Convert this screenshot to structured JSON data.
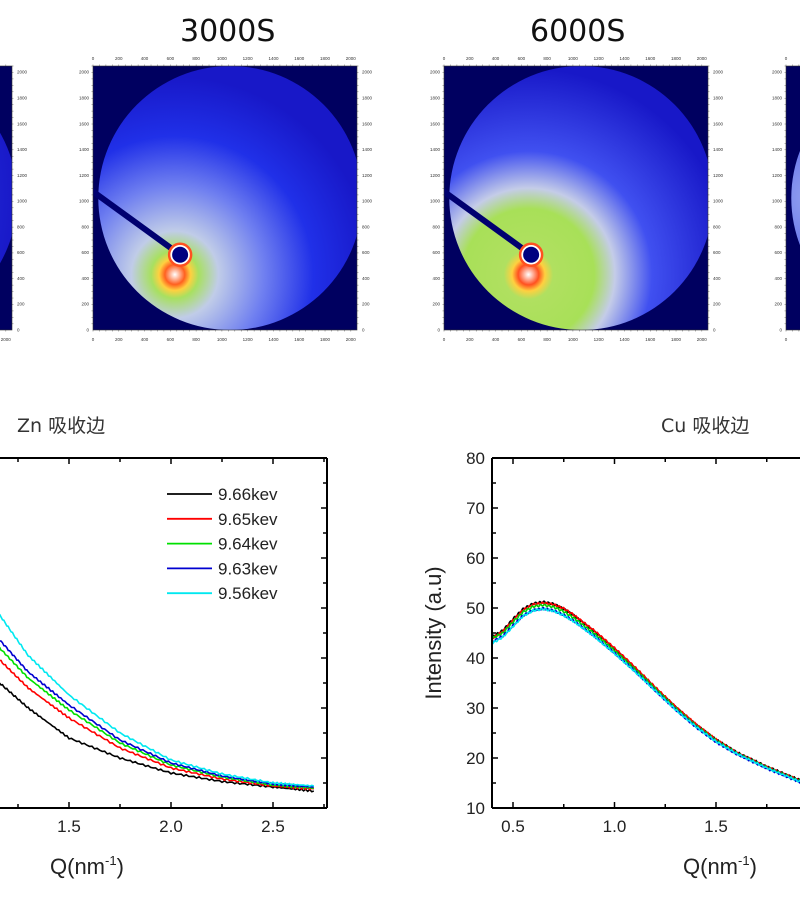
{
  "detector_images": {
    "panels": [
      {
        "title": "",
        "partial": "left-edge"
      },
      {
        "title": "3000S"
      },
      {
        "title": "6000S"
      },
      {
        "title": "",
        "partial": "right-edge"
      }
    ],
    "axis_ticks": [
      "0",
      "200",
      "400",
      "600",
      "800",
      "1000",
      "1200",
      "1400",
      "1600",
      "1800",
      "2000"
    ],
    "colormap": {
      "background": "#000060",
      "low": "#1010e0",
      "mid": "#b8c4f0",
      "high": "#a8e050",
      "peak": "#ff4020"
    }
  },
  "chart_data": [
    {
      "type": "line",
      "title": "Zn 吸收边",
      "xlabel": "Q(nm",
      "xlabel_sup": "-1",
      "xlabel_close": ")",
      "ylabel": "",
      "xlim": [
        0.4,
        2.76
      ],
      "ylim": [
        10,
        80
      ],
      "xticks": [
        "1.5",
        "2.0",
        "2.5"
      ],
      "xtick_values": [
        1.5,
        2.0,
        2.5
      ],
      "legend_position": "top-right",
      "series": [
        {
          "name": "9.66kev",
          "color": "#000000",
          "x": [
            1.16,
            1.3,
            1.5,
            1.75,
            2.0,
            2.25,
            2.5,
            2.7
          ],
          "y": [
            35.0,
            30.0,
            24.0,
            20.0,
            17.0,
            15.3,
            14.2,
            13.4
          ]
        },
        {
          "name": "9.65kev",
          "color": "#ff0000",
          "x": [
            1.16,
            1.3,
            1.5,
            1.75,
            2.0,
            2.25,
            2.5,
            2.7
          ],
          "y": [
            39.6,
            34.0,
            28.0,
            22.0,
            18.0,
            15.8,
            14.4,
            13.8
          ]
        },
        {
          "name": "9.64kev",
          "color": "#00e000",
          "x": [
            1.16,
            1.3,
            1.5,
            1.75,
            2.0,
            2.25,
            2.5,
            2.7
          ],
          "y": [
            42.0,
            36.0,
            29.6,
            23.0,
            18.6,
            16.2,
            14.6,
            14.0
          ]
        },
        {
          "name": "9.63kev",
          "color": "#0000d0",
          "x": [
            1.16,
            1.3,
            1.5,
            1.75,
            2.0,
            2.25,
            2.5,
            2.7
          ],
          "y": [
            43.6,
            37.2,
            30.6,
            23.6,
            19.0,
            16.4,
            14.8,
            14.2
          ]
        },
        {
          "name": "9.56kev",
          "color": "#00e8f0",
          "x": [
            1.16,
            1.3,
            1.5,
            1.75,
            2.0,
            2.25,
            2.5,
            2.7
          ],
          "y": [
            48.6,
            40.5,
            32.6,
            25.0,
            19.6,
            16.8,
            15.0,
            14.4
          ]
        }
      ]
    },
    {
      "type": "line",
      "title": "Cu 吸收边",
      "xlabel": "Q(nm",
      "xlabel_sup": "-1",
      "xlabel_close": ")",
      "ylabel": "Intensity (a.u)",
      "xlim": [
        0.4,
        2.37
      ],
      "ylim": [
        10,
        80
      ],
      "xticks": [
        "0.5",
        "1.0",
        "1.5"
      ],
      "xtick_values": [
        0.5,
        1.0,
        1.5
      ],
      "yticks": [
        "10",
        "20",
        "30",
        "40",
        "50",
        "60",
        "70",
        "80"
      ],
      "ytick_values": [
        10,
        20,
        30,
        40,
        50,
        60,
        70,
        80
      ],
      "series": [
        {
          "name": "9.66kev",
          "color": "#000000",
          "x": [
            0.4,
            0.45,
            0.5,
            0.55,
            0.6,
            0.65,
            0.7,
            0.75,
            0.8,
            0.9,
            1.0,
            1.1,
            1.2,
            1.3,
            1.4,
            1.5,
            1.6,
            1.75,
            1.9,
            1.95
          ],
          "y": [
            44.3,
            45.5,
            47.8,
            49.8,
            50.9,
            51.2,
            50.8,
            49.8,
            48.5,
            45.3,
            41.8,
            38.0,
            34.0,
            30.2,
            26.7,
            23.7,
            21.2,
            18.3,
            15.8,
            15.0
          ]
        },
        {
          "name": "9.65kev",
          "color": "#ff0000",
          "x": [
            0.4,
            0.45,
            0.5,
            0.55,
            0.6,
            0.65,
            0.7,
            0.75,
            0.8,
            0.9,
            1.0,
            1.1,
            1.2,
            1.3,
            1.4,
            1.5,
            1.6,
            1.75,
            1.9,
            1.95
          ],
          "y": [
            44.0,
            45.3,
            47.5,
            49.6,
            50.7,
            51.0,
            50.7,
            49.9,
            48.6,
            45.5,
            42.0,
            38.2,
            34.2,
            30.3,
            26.8,
            23.7,
            21.1,
            18.2,
            15.7,
            14.9
          ]
        },
        {
          "name": "9.64kev",
          "color": "#00d000",
          "x": [
            0.4,
            0.45,
            0.5,
            0.55,
            0.6,
            0.65,
            0.7,
            0.75,
            0.8,
            0.9,
            1.0,
            1.1,
            1.2,
            1.3,
            1.4,
            1.5,
            1.6,
            1.75,
            1.9,
            1.95
          ],
          "y": [
            44.0,
            45.0,
            47.2,
            49.2,
            50.3,
            50.6,
            50.2,
            49.3,
            48.0,
            44.9,
            41.5,
            37.8,
            33.9,
            30.0,
            26.5,
            23.5,
            21.0,
            18.1,
            15.6,
            14.8
          ]
        },
        {
          "name": "9.63kev",
          "color": "#0000d0",
          "x": [
            0.4,
            0.45,
            0.5,
            0.55,
            0.6,
            0.65,
            0.7,
            0.75,
            0.8,
            0.9,
            1.0,
            1.1,
            1.2,
            1.3,
            1.4,
            1.5,
            1.6,
            1.75,
            1.9,
            1.95
          ],
          "y": [
            43.3,
            44.4,
            46.5,
            48.5,
            49.6,
            49.9,
            49.5,
            48.6,
            47.4,
            44.4,
            41.0,
            37.4,
            33.5,
            29.7,
            26.2,
            23.2,
            20.8,
            17.9,
            15.4,
            14.6
          ]
        },
        {
          "name": "9.56kev",
          "color": "#00e8f0",
          "x": [
            0.4,
            0.45,
            0.5,
            0.55,
            0.6,
            0.65,
            0.7,
            0.75,
            0.8,
            0.9,
            1.0,
            1.1,
            1.2,
            1.3,
            1.4,
            1.5,
            1.6,
            1.75,
            1.9,
            1.95
          ],
          "y": [
            43.0,
            44.2,
            46.3,
            48.4,
            49.5,
            49.8,
            49.4,
            48.5,
            47.3,
            44.3,
            40.9,
            37.3,
            33.5,
            29.7,
            26.3,
            23.3,
            20.9,
            18.0,
            15.5,
            14.7
          ]
        }
      ]
    }
  ]
}
